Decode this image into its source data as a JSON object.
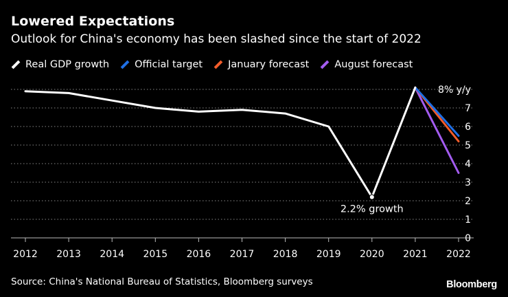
{
  "chart_data": {
    "type": "line",
    "title": "Lowered Expectations",
    "subtitle": "Outlook for China's economy has been slashed since the start of 2022",
    "categories": [
      "2012",
      "2013",
      "2014",
      "2015",
      "2016",
      "2017",
      "2018",
      "2019",
      "2020",
      "2021",
      "2022"
    ],
    "ylim": [
      0,
      8
    ],
    "yticks": [
      0,
      1,
      2,
      3,
      4,
      5,
      6,
      7
    ],
    "top_tick_label": "8% y/y",
    "series": [
      {
        "name": "Real GDP growth",
        "color": "#ffffff",
        "x": [
          "2012",
          "2013",
          "2014",
          "2015",
          "2016",
          "2017",
          "2018",
          "2019",
          "2020",
          "2021"
        ],
        "values": [
          7.9,
          7.8,
          7.4,
          7.0,
          6.8,
          6.9,
          6.7,
          6.0,
          2.2,
          8.1
        ]
      },
      {
        "name": "Official target",
        "color": "#1f6fe5",
        "x": [
          "2021",
          "2022"
        ],
        "values": [
          8.1,
          5.5
        ]
      },
      {
        "name": "January forecast",
        "color": "#f25c2a",
        "x": [
          "2021",
          "2022"
        ],
        "values": [
          8.1,
          5.2
        ]
      },
      {
        "name": "August forecast",
        "color": "#a35cf0",
        "x": [
          "2021",
          "2022"
        ],
        "values": [
          8.1,
          3.5
        ]
      }
    ],
    "annotations": [
      {
        "text": "2.2% growth",
        "x": "2020",
        "y": 2.2
      }
    ],
    "source": "Source: China's National Bureau of Statistics, Bloomberg surveys",
    "brand": "Bloomberg"
  }
}
